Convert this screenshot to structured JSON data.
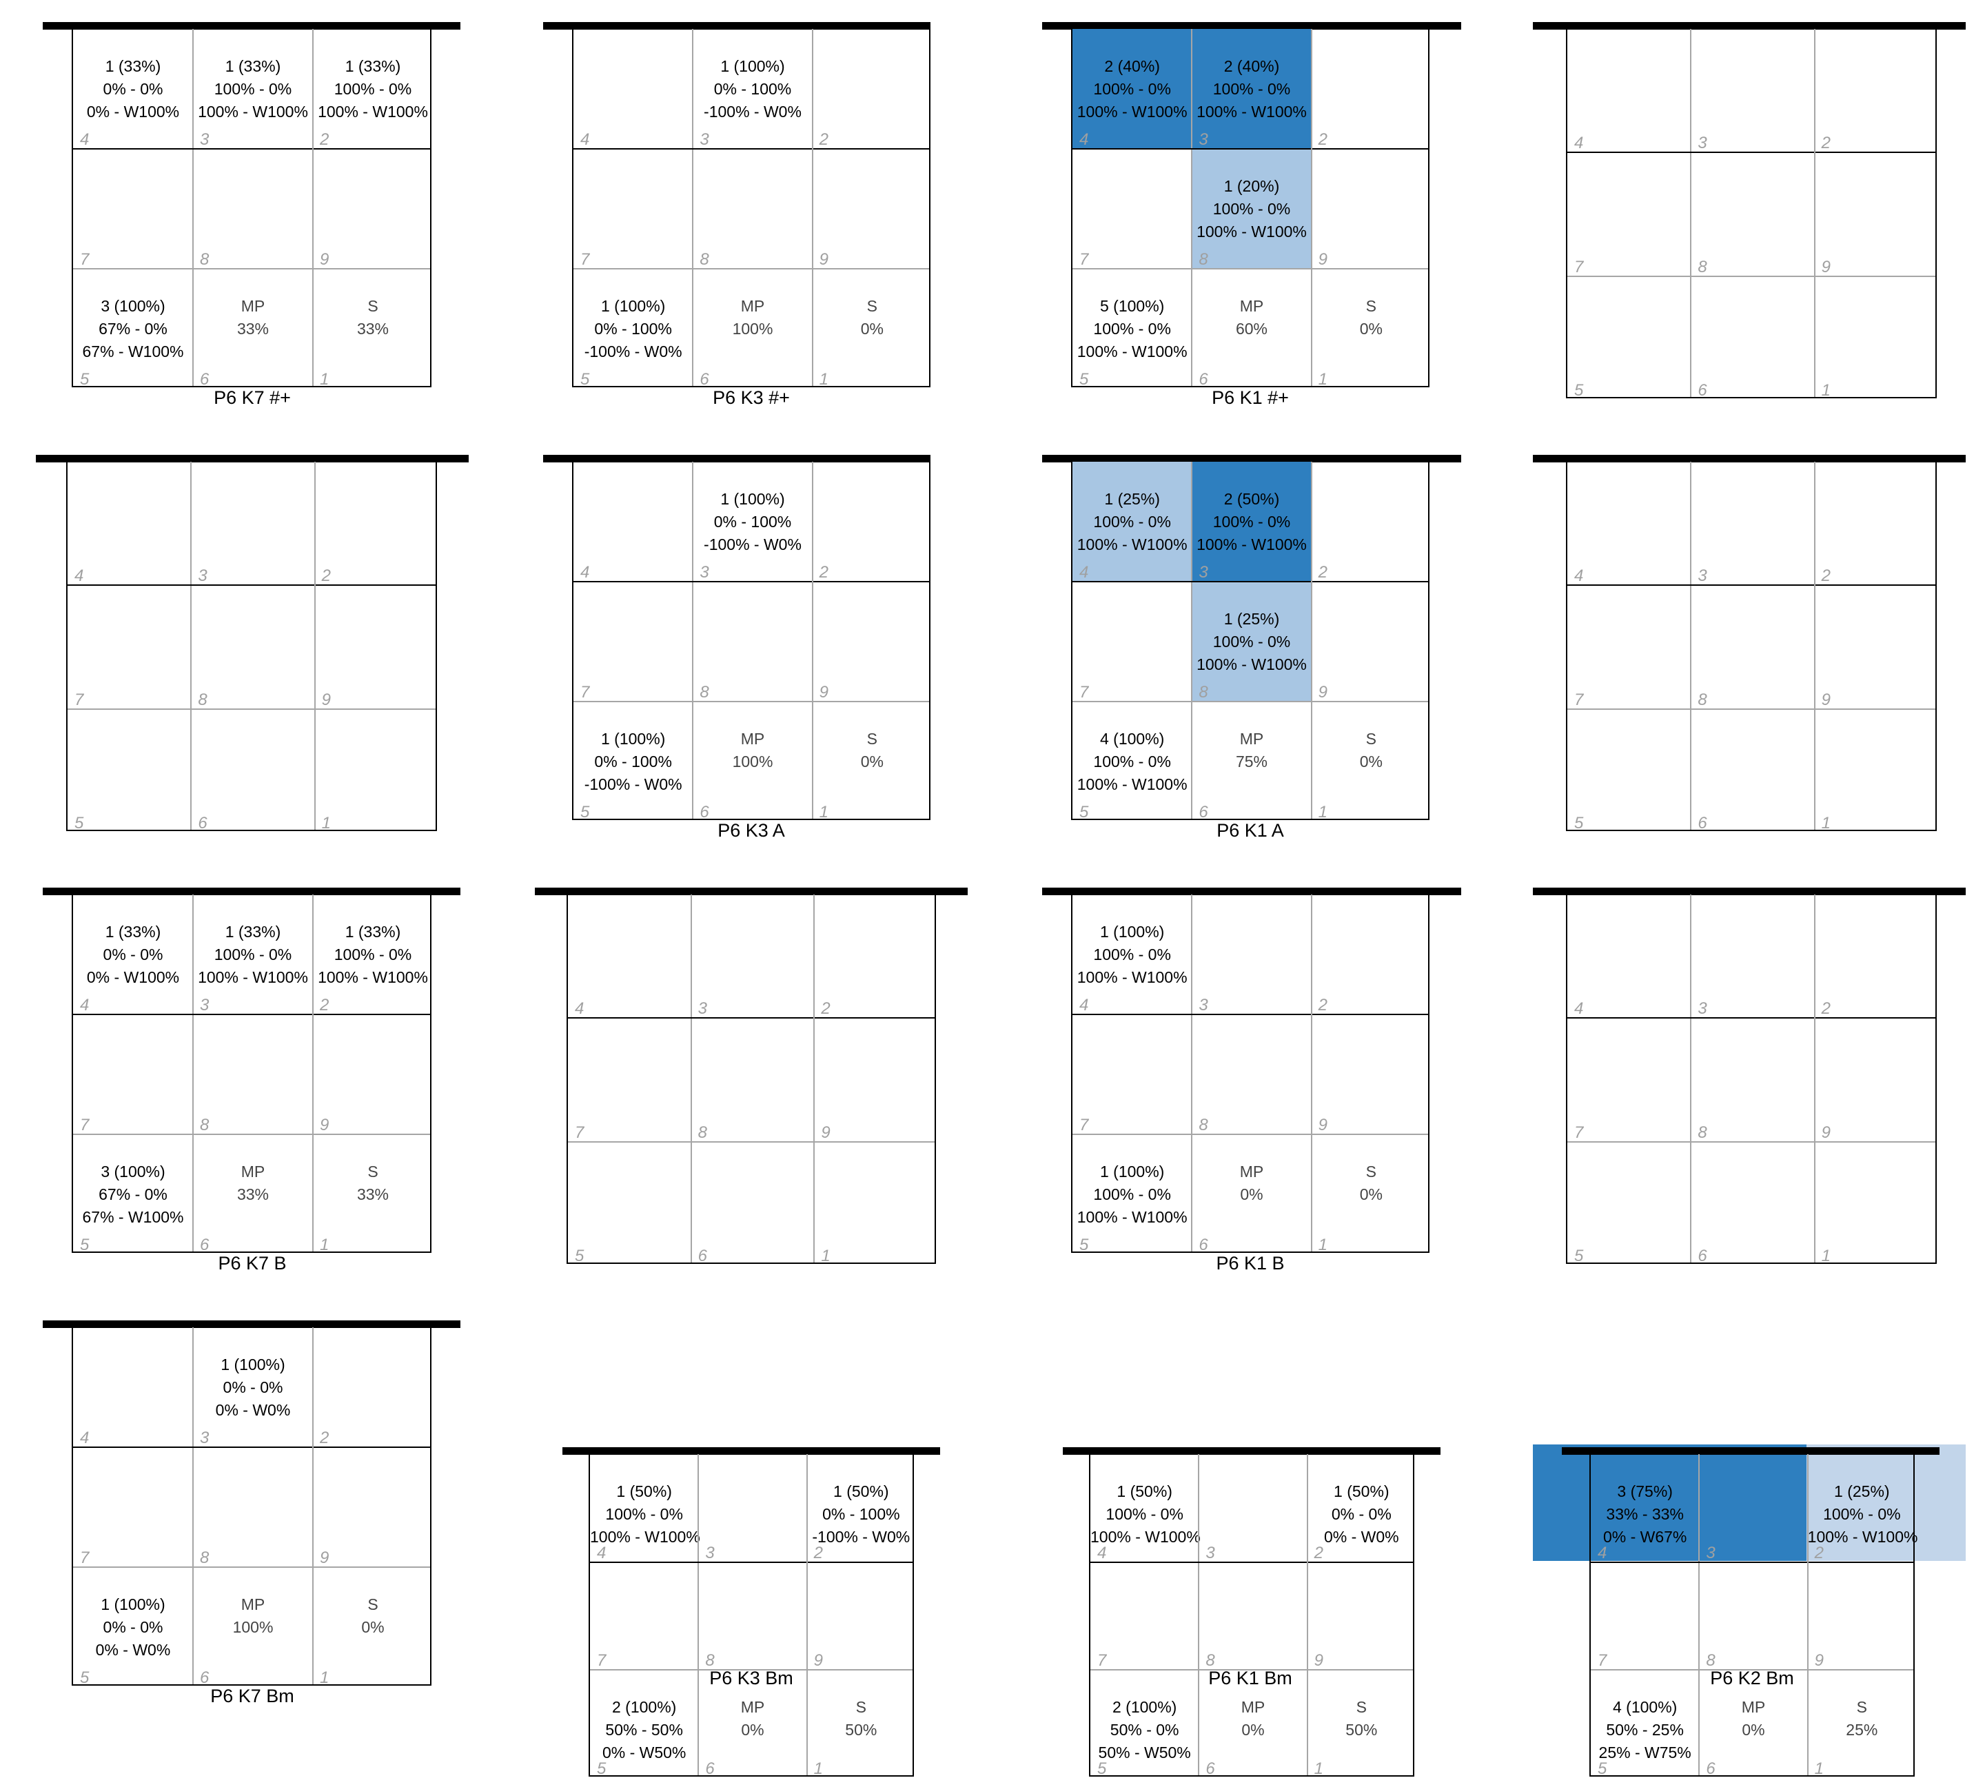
{
  "colors": {
    "dark": "#2e7fbf",
    "light": "#a8c6e3",
    "lighter": "#c2d5ea"
  },
  "zone_order": [
    "4",
    "3",
    "2",
    "7",
    "8",
    "9",
    "5",
    "6",
    "1"
  ],
  "panels": [
    {
      "caption": "P6 K7 #+",
      "cells": {
        "4": {
          "lines": [
            "1 (33%)",
            "0% - 0%",
            "0% - W100%"
          ]
        },
        "3": {
          "lines": [
            "1 (33%)",
            "100% - 0%",
            "100% - W100%"
          ]
        },
        "2": {
          "lines": [
            "1 (33%)",
            "100% - 0%",
            "100% - W100%"
          ]
        },
        "5": {
          "lines": [
            "3 (100%)",
            "67% - 0%",
            "67% - W100%"
          ]
        },
        "6": {
          "lines": [
            "MP",
            "33%"
          ],
          "mp": true
        },
        "1": {
          "lines": [
            "S",
            "33%"
          ],
          "mp": true
        }
      }
    },
    {
      "caption": "P6 K3 #+",
      "cells": {
        "3": {
          "lines": [
            "1 (100%)",
            "0% - 100%",
            "-100% - W0%"
          ]
        },
        "5": {
          "lines": [
            "1 (100%)",
            "0% - 100%",
            "-100% - W0%"
          ]
        },
        "6": {
          "lines": [
            "MP",
            "100%"
          ],
          "mp": true
        },
        "1": {
          "lines": [
            "S",
            "0%"
          ],
          "mp": true
        }
      }
    },
    {
      "caption": "P6 K1 #+",
      "cells": {
        "4": {
          "lines": [
            "2 (40%)",
            "100% - 0%",
            "100% - W100%"
          ],
          "fill": "dark"
        },
        "3": {
          "lines": [
            "2 (40%)",
            "100% - 0%",
            "100% - W100%"
          ],
          "fill": "dark"
        },
        "8": {
          "lines": [
            "1 (20%)",
            "100% - 0%",
            "100% - W100%"
          ],
          "fill": "light"
        },
        "5": {
          "lines": [
            "5 (100%)",
            "100% - 0%",
            "100% - W100%"
          ]
        },
        "6": {
          "lines": [
            "MP",
            "60%"
          ],
          "mp": true
        },
        "1": {
          "lines": [
            "S",
            "0%"
          ],
          "mp": true
        }
      }
    },
    {
      "caption": "",
      "cells": {}
    },
    {
      "caption": "",
      "cells": {}
    },
    {
      "caption": "P6 K3 A",
      "cells": {
        "3": {
          "lines": [
            "1 (100%)",
            "0% - 100%",
            "-100% - W0%"
          ]
        },
        "5": {
          "lines": [
            "1 (100%)",
            "0% - 100%",
            "-100% - W0%"
          ]
        },
        "6": {
          "lines": [
            "MP",
            "100%"
          ],
          "mp": true
        },
        "1": {
          "lines": [
            "S",
            "0%"
          ],
          "mp": true
        }
      }
    },
    {
      "caption": "P6 K1 A",
      "cells": {
        "4": {
          "lines": [
            "1 (25%)",
            "100% - 0%",
            "100% - W100%"
          ],
          "fill": "light"
        },
        "3": {
          "lines": [
            "2 (50%)",
            "100% - 0%",
            "100% - W100%"
          ],
          "fill": "dark"
        },
        "8": {
          "lines": [
            "1 (25%)",
            "100% - 0%",
            "100% - W100%"
          ],
          "fill": "light"
        },
        "5": {
          "lines": [
            "4 (100%)",
            "100% - 0%",
            "100% - W100%"
          ]
        },
        "6": {
          "lines": [
            "MP",
            "75%"
          ],
          "mp": true
        },
        "1": {
          "lines": [
            "S",
            "0%"
          ],
          "mp": true
        }
      }
    },
    {
      "caption": "",
      "cells": {}
    },
    {
      "caption": "P6 K7 B",
      "cells": {
        "4": {
          "lines": [
            "1 (33%)",
            "0% - 0%",
            "0% - W100%"
          ]
        },
        "3": {
          "lines": [
            "1 (33%)",
            "100% - 0%",
            "100% - W100%"
          ]
        },
        "2": {
          "lines": [
            "1 (33%)",
            "100% - 0%",
            "100% - W100%"
          ]
        },
        "5": {
          "lines": [
            "3 (100%)",
            "67% - 0%",
            "67% - W100%"
          ]
        },
        "6": {
          "lines": [
            "MP",
            "33%"
          ],
          "mp": true
        },
        "1": {
          "lines": [
            "S",
            "33%"
          ],
          "mp": true
        }
      }
    },
    {
      "caption": "",
      "cells": {}
    },
    {
      "caption": "P6 K1 B",
      "cells": {
        "4": {
          "lines": [
            "1 (100%)",
            "100% - 0%",
            "100% - W100%"
          ]
        },
        "5": {
          "lines": [
            "1 (100%)",
            "100% - 0%",
            "100% - W100%"
          ]
        },
        "6": {
          "lines": [
            "MP",
            "0%"
          ],
          "mp": true
        },
        "1": {
          "lines": [
            "S",
            "0%"
          ],
          "mp": true
        }
      }
    },
    {
      "caption": "",
      "cells": {}
    },
    {
      "caption": "P6 K7 Bm",
      "cells": {
        "3": {
          "lines": [
            "1 (100%)",
            "0% - 0%",
            "0% - W0%"
          ]
        },
        "5": {
          "lines": [
            "1 (100%)",
            "0% - 0%",
            "0% - W0%"
          ]
        },
        "6": {
          "lines": [
            "MP",
            "100%"
          ],
          "mp": true
        },
        "1": {
          "lines": [
            "S",
            "0%"
          ],
          "mp": true
        }
      }
    },
    {
      "caption": "P6 K3 Bm",
      "cells": {
        "4": {
          "lines": [
            "1 (50%)",
            "100% - 0%",
            "100% - W100%"
          ]
        },
        "2": {
          "lines": [
            "1 (50%)",
            "0% - 100%",
            "-100% - W0%"
          ]
        },
        "5": {
          "lines": [
            "2 (100%)",
            "50% - 50%",
            "0% - W50%"
          ]
        },
        "6": {
          "lines": [
            "MP",
            "0%"
          ],
          "mp": true
        },
        "1": {
          "lines": [
            "S",
            "50%"
          ],
          "mp": true
        }
      }
    },
    {
      "caption": "P6 K1 Bm",
      "cells": {
        "4": {
          "lines": [
            "1 (50%)",
            "100% - 0%",
            "100% - W100%"
          ]
        },
        "2": {
          "lines": [
            "1 (50%)",
            "0% - 0%",
            "0% - W0%"
          ]
        },
        "5": {
          "lines": [
            "2 (100%)",
            "50% - 0%",
            "50% - W50%"
          ]
        },
        "6": {
          "lines": [
            "MP",
            "0%"
          ],
          "mp": true
        },
        "1": {
          "lines": [
            "S",
            "50%"
          ],
          "mp": true
        }
      }
    },
    {
      "caption": "P6 K2 Bm",
      "cells": {
        "4": {
          "lines": [
            "3 (75%)",
            "33% - 33%",
            "0% - W67%"
          ],
          "fill": "dark"
        },
        "3": {
          "fill": "dark"
        },
        "2": {
          "lines": [
            "1 (25%)",
            "100% - 0%",
            "100% - W100%"
          ],
          "fill": "lighter"
        },
        "5": {
          "lines": [
            "4 (100%)",
            "50% - 25%",
            "25% - W75%"
          ]
        },
        "6": {
          "lines": [
            "MP",
            "0%"
          ],
          "mp": true
        },
        "1": {
          "lines": [
            "S",
            "25%"
          ],
          "mp": true
        }
      }
    }
  ]
}
